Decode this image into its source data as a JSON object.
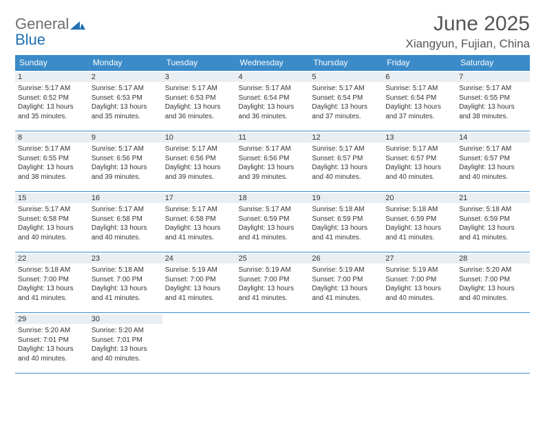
{
  "logo": {
    "gray": "General",
    "blue": "Blue"
  },
  "title": "June 2025",
  "location": "Xiangyun, Fujian, China",
  "colors": {
    "header_bg": "#3b8bc9",
    "header_text": "#ffffff",
    "daynum_bg": "#e9eef2",
    "border": "#3b8bc9",
    "body_text": "#333333",
    "title_text": "#555555",
    "logo_gray": "#6d6d6d",
    "logo_blue": "#1f6fb2",
    "page_bg": "#ffffff"
  },
  "weekdays": [
    "Sunday",
    "Monday",
    "Tuesday",
    "Wednesday",
    "Thursday",
    "Friday",
    "Saturday"
  ],
  "weeks": [
    [
      {
        "n": "1",
        "sr": "5:17 AM",
        "ss": "6:52 PM",
        "dl": "13 hours and 35 minutes."
      },
      {
        "n": "2",
        "sr": "5:17 AM",
        "ss": "6:53 PM",
        "dl": "13 hours and 35 minutes."
      },
      {
        "n": "3",
        "sr": "5:17 AM",
        "ss": "6:53 PM",
        "dl": "13 hours and 36 minutes."
      },
      {
        "n": "4",
        "sr": "5:17 AM",
        "ss": "6:54 PM",
        "dl": "13 hours and 36 minutes."
      },
      {
        "n": "5",
        "sr": "5:17 AM",
        "ss": "6:54 PM",
        "dl": "13 hours and 37 minutes."
      },
      {
        "n": "6",
        "sr": "5:17 AM",
        "ss": "6:54 PM",
        "dl": "13 hours and 37 minutes."
      },
      {
        "n": "7",
        "sr": "5:17 AM",
        "ss": "6:55 PM",
        "dl": "13 hours and 38 minutes."
      }
    ],
    [
      {
        "n": "8",
        "sr": "5:17 AM",
        "ss": "6:55 PM",
        "dl": "13 hours and 38 minutes."
      },
      {
        "n": "9",
        "sr": "5:17 AM",
        "ss": "6:56 PM",
        "dl": "13 hours and 39 minutes."
      },
      {
        "n": "10",
        "sr": "5:17 AM",
        "ss": "6:56 PM",
        "dl": "13 hours and 39 minutes."
      },
      {
        "n": "11",
        "sr": "5:17 AM",
        "ss": "6:56 PM",
        "dl": "13 hours and 39 minutes."
      },
      {
        "n": "12",
        "sr": "5:17 AM",
        "ss": "6:57 PM",
        "dl": "13 hours and 40 minutes."
      },
      {
        "n": "13",
        "sr": "5:17 AM",
        "ss": "6:57 PM",
        "dl": "13 hours and 40 minutes."
      },
      {
        "n": "14",
        "sr": "5:17 AM",
        "ss": "6:57 PM",
        "dl": "13 hours and 40 minutes."
      }
    ],
    [
      {
        "n": "15",
        "sr": "5:17 AM",
        "ss": "6:58 PM",
        "dl": "13 hours and 40 minutes."
      },
      {
        "n": "16",
        "sr": "5:17 AM",
        "ss": "6:58 PM",
        "dl": "13 hours and 40 minutes."
      },
      {
        "n": "17",
        "sr": "5:17 AM",
        "ss": "6:58 PM",
        "dl": "13 hours and 41 minutes."
      },
      {
        "n": "18",
        "sr": "5:17 AM",
        "ss": "6:59 PM",
        "dl": "13 hours and 41 minutes."
      },
      {
        "n": "19",
        "sr": "5:18 AM",
        "ss": "6:59 PM",
        "dl": "13 hours and 41 minutes."
      },
      {
        "n": "20",
        "sr": "5:18 AM",
        "ss": "6:59 PM",
        "dl": "13 hours and 41 minutes."
      },
      {
        "n": "21",
        "sr": "5:18 AM",
        "ss": "6:59 PM",
        "dl": "13 hours and 41 minutes."
      }
    ],
    [
      {
        "n": "22",
        "sr": "5:18 AM",
        "ss": "7:00 PM",
        "dl": "13 hours and 41 minutes."
      },
      {
        "n": "23",
        "sr": "5:18 AM",
        "ss": "7:00 PM",
        "dl": "13 hours and 41 minutes."
      },
      {
        "n": "24",
        "sr": "5:19 AM",
        "ss": "7:00 PM",
        "dl": "13 hours and 41 minutes."
      },
      {
        "n": "25",
        "sr": "5:19 AM",
        "ss": "7:00 PM",
        "dl": "13 hours and 41 minutes."
      },
      {
        "n": "26",
        "sr": "5:19 AM",
        "ss": "7:00 PM",
        "dl": "13 hours and 41 minutes."
      },
      {
        "n": "27",
        "sr": "5:19 AM",
        "ss": "7:00 PM",
        "dl": "13 hours and 40 minutes."
      },
      {
        "n": "28",
        "sr": "5:20 AM",
        "ss": "7:00 PM",
        "dl": "13 hours and 40 minutes."
      }
    ],
    [
      {
        "n": "29",
        "sr": "5:20 AM",
        "ss": "7:01 PM",
        "dl": "13 hours and 40 minutes."
      },
      {
        "n": "30",
        "sr": "5:20 AM",
        "ss": "7:01 PM",
        "dl": "13 hours and 40 minutes."
      },
      null,
      null,
      null,
      null,
      null
    ]
  ],
  "labels": {
    "sunrise": "Sunrise:",
    "sunset": "Sunset:",
    "daylight": "Daylight:"
  }
}
